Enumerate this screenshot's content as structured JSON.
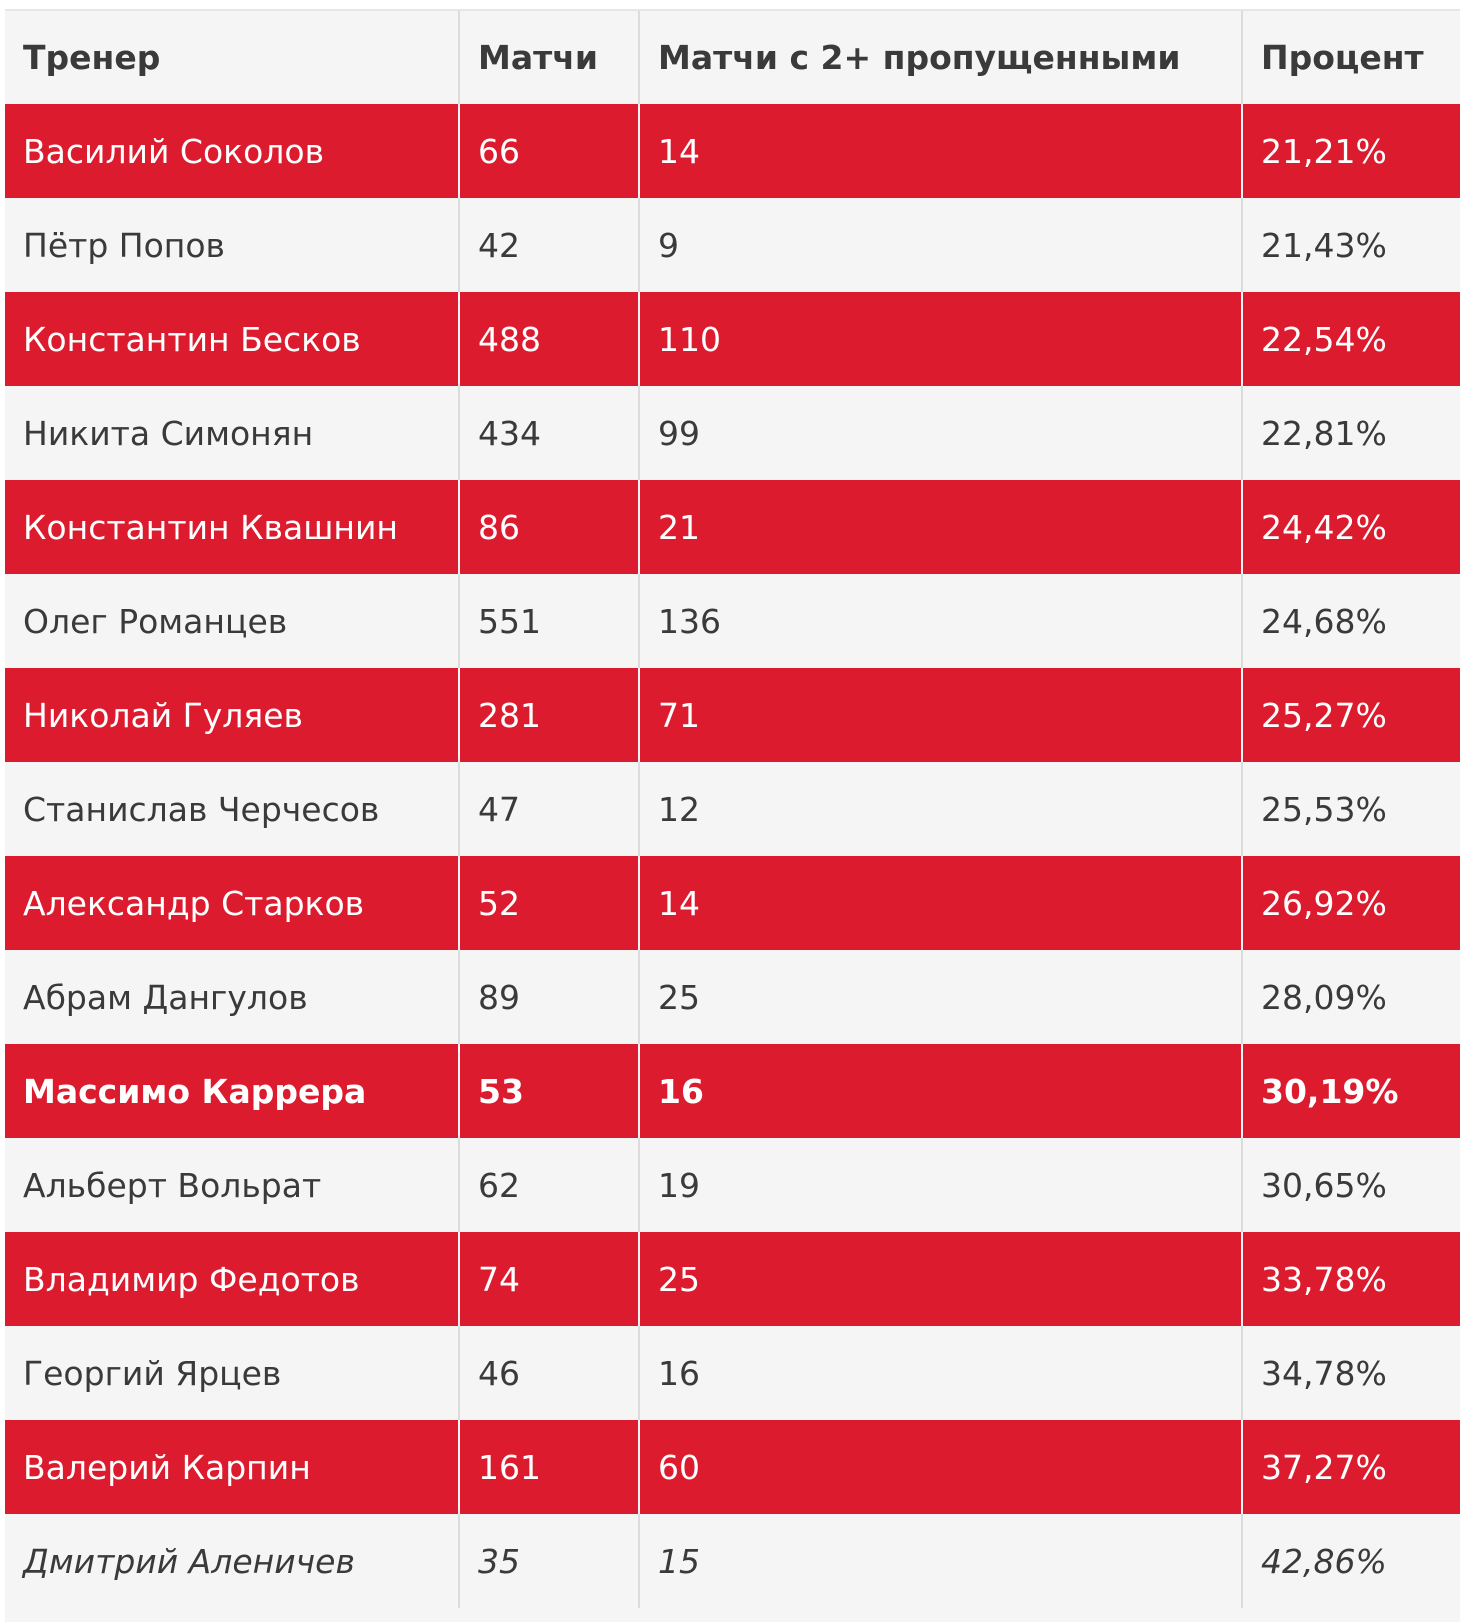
{
  "colors": {
    "accent": "#dc1c2e",
    "row_bg": "#f5f5f5"
  },
  "table": {
    "headers": [
      "Тренер",
      "Матчи",
      "Матчи с 2+ пропущенными",
      "Процент"
    ],
    "rows": [
      {
        "coach": "Василий Соколов",
        "matches": "66",
        "conceded2plus": "14",
        "percent": "21,21%",
        "style": "red"
      },
      {
        "coach": "Пётр Попов",
        "matches": "42",
        "conceded2plus": "9",
        "percent": "21,43%",
        "style": "plain"
      },
      {
        "coach": "Константин Бесков",
        "matches": "488",
        "conceded2plus": "110",
        "percent": "22,54%",
        "style": "red"
      },
      {
        "coach": "Никита Симонян",
        "matches": "434",
        "conceded2plus": "99",
        "percent": "22,81%",
        "style": "plain"
      },
      {
        "coach": "Константин Квашнин",
        "matches": "86",
        "conceded2plus": "21",
        "percent": "24,42%",
        "style": "red"
      },
      {
        "coach": "Олег Романцев",
        "matches": "551",
        "conceded2plus": "136",
        "percent": "24,68%",
        "style": "plain"
      },
      {
        "coach": "Николай Гуляев",
        "matches": "281",
        "conceded2plus": "71",
        "percent": "25,27%",
        "style": "red"
      },
      {
        "coach": "Станислав Черчесов",
        "matches": "47",
        "conceded2plus": "12",
        "percent": "25,53%",
        "style": "plain"
      },
      {
        "coach": "Александр Старков",
        "matches": "52",
        "conceded2plus": "14",
        "percent": "26,92%",
        "style": "red"
      },
      {
        "coach": "Абрам Дангулов",
        "matches": "89",
        "conceded2plus": "25",
        "percent": "28,09%",
        "style": "plain"
      },
      {
        "coach": "Массимо Каррера",
        "matches": "53",
        "conceded2plus": "16",
        "percent": "30,19%",
        "style": "red bold"
      },
      {
        "coach": "Альберт Вольрат",
        "matches": "62",
        "conceded2plus": "19",
        "percent": "30,65%",
        "style": "plain"
      },
      {
        "coach": "Владимир Федотов",
        "matches": "74",
        "conceded2plus": "25",
        "percent": "33,78%",
        "style": "red"
      },
      {
        "coach": "Георгий Ярцев",
        "matches": "46",
        "conceded2plus": "16",
        "percent": "34,78%",
        "style": "plain"
      },
      {
        "coach": "Валерий Карпин",
        "matches": "161",
        "conceded2plus": "60",
        "percent": "37,27%",
        "style": "red"
      },
      {
        "coach": "Дмитрий Аленичев",
        "matches": "35",
        "conceded2plus": "15",
        "percent": "42,86%",
        "style": "plain italic"
      }
    ]
  }
}
